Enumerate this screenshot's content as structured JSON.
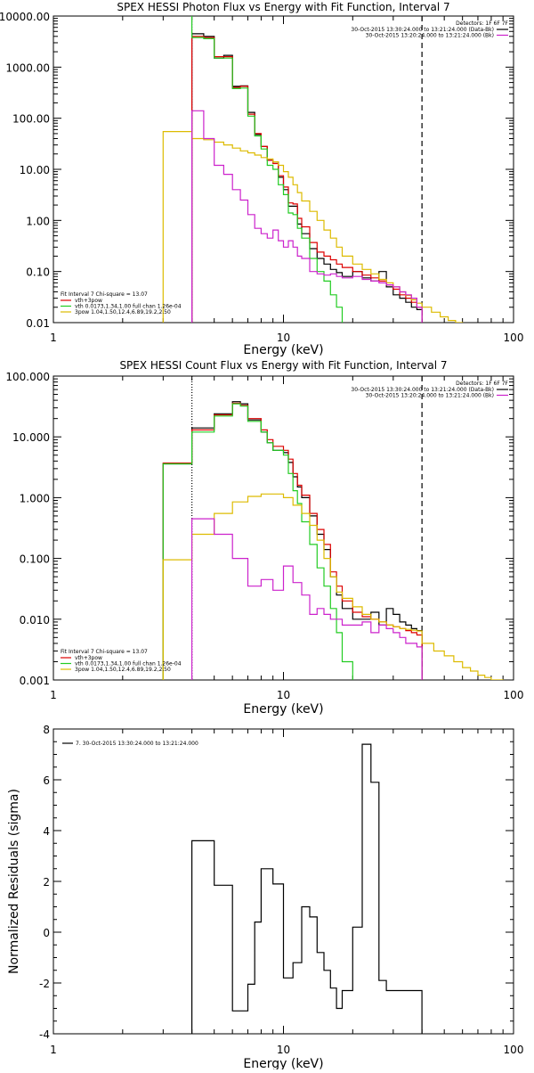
{
  "chart_data": [
    {
      "type": "line",
      "title": "SPEX HESSI Photon Flux vs Energy with Fit Function, Interval 7",
      "xlabel": "Energy (keV)",
      "ylabel": "",
      "x_scale": "log",
      "y_scale": "log",
      "xlim": [
        1,
        100
      ],
      "ylim": [
        0.01,
        10000
      ],
      "x_ticks": [
        1,
        10,
        100
      ],
      "x_tick_labels": [
        "1",
        "10",
        "100"
      ],
      "y_ticks": [
        0.01,
        0.1,
        1,
        10,
        100,
        1000,
        10000
      ],
      "y_tick_labels": [
        "0.01",
        "0.10",
        "1.00",
        "10.00",
        "100.00",
        "1000.00",
        "10000.00"
      ],
      "grid": false,
      "legend_top": {
        "title": "Detectors: 1F 6F 7F",
        "entries": [
          {
            "label": "30-Oct-2015 13:30:24.000 to 13:21:24.000 (Data-Bk)",
            "color": "#000000"
          },
          {
            "label": "30-Oct-2015 13:20:24.000 to 13:21:24.000 (Bk)",
            "color": "#cc22cc"
          }
        ]
      },
      "legend_bottom": {
        "title": "Fit Interval 7   Chi-square = 13.07",
        "entries": [
          {
            "label": "vth+3pow",
            "color": "#dd0000"
          },
          {
            "label": "vth 0.0173,1.34,1.00  full chan 1.26e-04",
            "color": "#22cc22"
          },
          {
            "label": "3pow 1.04,1.50,12.4,6.89,19.2,2.50",
            "color": "#ddbb00"
          }
        ]
      },
      "vlines": [
        {
          "x": 4.0,
          "style": "dotted",
          "color": "#cc22cc"
        },
        {
          "x": 40.0,
          "style": "dashed",
          "color": "#000000"
        }
      ],
      "series": [
        {
          "name": "Data-Bk",
          "color": "#000000",
          "edges": [
            4,
            4.5,
            5,
            5.5,
            6,
            6.5,
            7,
            7.5,
            8,
            8.5,
            9,
            9.5,
            10,
            10.5,
            11,
            11.5,
            12,
            13,
            14,
            15,
            16,
            17,
            18,
            20,
            22,
            24,
            26,
            28,
            30,
            32,
            34,
            36,
            38,
            40
          ],
          "values": [
            4500,
            4000,
            1500,
            1700,
            420,
            430,
            130,
            48,
            28,
            15,
            14,
            7,
            4,
            1.9,
            1.9,
            0.85,
            0.55,
            0.28,
            0.18,
            0.14,
            0.11,
            0.095,
            0.08,
            0.1,
            0.075,
            0.065,
            0.1,
            0.05,
            0.035,
            0.03,
            0.025,
            0.02,
            0.018
          ]
        },
        {
          "name": "vth+3pow",
          "color": "#dd0000",
          "edges": [
            4,
            4.5,
            5,
            5.5,
            6,
            6.5,
            7,
            7.5,
            8,
            8.5,
            9,
            9.5,
            10,
            10.5,
            11,
            11.5,
            12,
            13,
            14,
            15,
            16,
            17,
            18,
            20,
            22,
            24,
            26,
            28,
            30,
            32,
            34,
            36,
            38,
            40
          ],
          "values": [
            4000,
            3800,
            1600,
            1600,
            400,
            420,
            120,
            50,
            28,
            15,
            13,
            7.5,
            4.5,
            2.2,
            2.1,
            1.1,
            0.75,
            0.37,
            0.24,
            0.2,
            0.17,
            0.14,
            0.12,
            0.1,
            0.085,
            0.075,
            0.065,
            0.055,
            0.045,
            0.035,
            0.03,
            0.025,
            0.02
          ]
        },
        {
          "name": "vth",
          "color": "#22cc22",
          "edges": [
            3.0,
            4.0,
            4.5,
            5,
            5.5,
            6,
            6.5,
            7,
            7.5,
            8,
            8.5,
            9,
            9.5,
            10,
            10.5,
            11,
            11.5,
            12,
            13,
            14,
            15,
            16,
            17,
            18
          ],
          "values": [
            null,
            3800,
            3600,
            1500,
            1500,
            380,
            390,
            110,
            45,
            25,
            12,
            10,
            5,
            3.2,
            1.4,
            1.3,
            0.7,
            0.45,
            0.18,
            0.1,
            0.065,
            0.035,
            0.02
          ]
        },
        {
          "name": "3pow",
          "color": "#ddbb00",
          "edges": [
            3.0,
            4.0,
            4.5,
            5,
            5.5,
            6,
            6.5,
            7,
            7.5,
            8,
            8.5,
            9,
            9.5,
            10,
            10.5,
            11,
            11.5,
            12,
            13,
            14,
            15,
            16,
            17,
            18,
            20,
            22,
            24,
            26,
            28,
            30,
            32,
            34,
            36,
            38,
            40,
            44,
            48,
            52,
            56,
            60
          ],
          "values": [
            55,
            40,
            38,
            34,
            30,
            26,
            23,
            21,
            19,
            17,
            16,
            14,
            12,
            9,
            7,
            5,
            3.5,
            2.4,
            1.5,
            1.0,
            0.65,
            0.45,
            0.3,
            0.2,
            0.14,
            0.11,
            0.09,
            0.07,
            0.06,
            0.05,
            0.04,
            0.034,
            0.028,
            0.024,
            0.02,
            0.016,
            0.013,
            0.011,
            0.01
          ]
        },
        {
          "name": "Bk",
          "color": "#cc22cc",
          "edges": [
            4,
            4.5,
            5,
            5.5,
            6,
            6.5,
            7,
            7.5,
            8,
            8.5,
            9,
            9.5,
            10,
            10.5,
            11,
            11.5,
            12,
            13,
            14,
            15,
            16,
            17,
            18,
            20,
            22,
            24,
            26,
            28,
            30,
            32,
            34,
            36,
            38,
            40
          ],
          "values": [
            140,
            40,
            12,
            8,
            4,
            2.5,
            1.3,
            0.7,
            0.55,
            0.45,
            0.65,
            0.4,
            0.3,
            0.4,
            0.3,
            0.2,
            0.18,
            0.1,
            0.09,
            0.085,
            0.09,
            0.08,
            0.075,
            0.08,
            0.07,
            0.065,
            0.06,
            0.055,
            0.05,
            0.04,
            0.035,
            0.03,
            0.02
          ]
        }
      ]
    },
    {
      "type": "line",
      "title": "SPEX HESSI Count Flux vs Energy with Fit Function, Interval 7",
      "xlabel": "Energy (keV)",
      "ylabel": "",
      "x_scale": "log",
      "y_scale": "log",
      "xlim": [
        1,
        100
      ],
      "ylim": [
        0.001,
        100
      ],
      "x_ticks": [
        1,
        10,
        100
      ],
      "x_tick_labels": [
        "1",
        "10",
        "100"
      ],
      "y_ticks": [
        0.001,
        0.01,
        0.1,
        1,
        10,
        100
      ],
      "y_tick_labels": [
        "0.001",
        "0.010",
        "0.100",
        "1.000",
        "10.000",
        "100.000"
      ],
      "grid": false,
      "legend_top": {
        "title": "Detectors: 1F 6F 7F",
        "entries": [
          {
            "label": "30-Oct-2015 13:30:24.000 to 13:21:24.000 (Data-Bk)",
            "color": "#000000"
          },
          {
            "label": "30-Oct-2015 13:20:24.000 to 13:21:24.000 (Bk)",
            "color": "#cc22cc"
          }
        ]
      },
      "legend_bottom": {
        "title": "Fit Interval 7   Chi-square = 13.07",
        "entries": [
          {
            "label": "vth+3pow",
            "color": "#dd0000"
          },
          {
            "label": "vth 0.0173,1.34,1.00  full chan 1.26e-04",
            "color": "#22cc22"
          },
          {
            "label": "3pow 1.04,1.50,12.4,6.89,19.2,2.50",
            "color": "#ddbb00"
          }
        ]
      },
      "vlines": [
        {
          "x": 4.0,
          "style": "dotted",
          "color": "#000000"
        },
        {
          "x": 40.0,
          "style": "dashed",
          "color": "#000000"
        }
      ],
      "series": [
        {
          "name": "Data-Bk",
          "color": "#000000",
          "edges": [
            3.0,
            4.0,
            5.0,
            6.0,
            6.5,
            7.0,
            8.0,
            8.5,
            9.0,
            10.0,
            10.5,
            11.0,
            11.5,
            12.0,
            13.0,
            14.0,
            15.0,
            16.0,
            17.0,
            18.0,
            20.0,
            22.0,
            24.0,
            26.0,
            28.0,
            30.0,
            32.0,
            34.0,
            36.0,
            38.0,
            40.0
          ],
          "values": [
            3.6,
            14,
            24,
            38,
            35,
            19,
            12,
            8,
            6,
            5.5,
            3.8,
            2.2,
            1.5,
            1.0,
            0.5,
            0.25,
            0.14,
            0.05,
            0.025,
            0.015,
            0.01,
            0.01,
            0.013,
            0.008,
            0.015,
            0.012,
            0.009,
            0.008,
            0.007,
            0.0065
          ]
        },
        {
          "name": "vth+3pow",
          "color": "#dd0000",
          "edges": [
            3.0,
            4.0,
            5.0,
            6.0,
            6.5,
            7.0,
            8.0,
            8.5,
            9.0,
            10.0,
            10.5,
            11.0,
            11.5,
            12.0,
            13.0,
            14.0,
            15.0,
            16.0,
            17.0,
            18.0,
            20.0,
            22.0,
            24.0,
            26.0,
            28.0,
            30.0,
            32.0,
            34.0,
            36.0,
            38.0,
            40.0
          ],
          "values": [
            3.7,
            13,
            23,
            36,
            33,
            20,
            13,
            9,
            7,
            6,
            4.3,
            2.5,
            1.6,
            1.1,
            0.55,
            0.3,
            0.17,
            0.06,
            0.035,
            0.02,
            0.013,
            0.011,
            0.01,
            0.009,
            0.008,
            0.0075,
            0.007,
            0.0065,
            0.006,
            0.0055
          ]
        },
        {
          "name": "vth",
          "color": "#22cc22",
          "edges": [
            3.0,
            4.0,
            5.0,
            6.0,
            6.5,
            7.0,
            8.0,
            8.5,
            9.0,
            10.0,
            10.5,
            11.0,
            11.5,
            12.0,
            13.0,
            14.0,
            15.0,
            16.0,
            17.0,
            18.0,
            20.0
          ],
          "values": [
            3.6,
            12,
            22,
            35,
            32,
            18,
            12,
            8,
            6,
            5,
            2.5,
            1.3,
            0.8,
            0.4,
            0.17,
            0.07,
            0.035,
            0.015,
            0.006,
            0.002
          ]
        },
        {
          "name": "3pow",
          "color": "#ddbb00",
          "edges": [
            3.0,
            4.0,
            5.0,
            6.0,
            7.0,
            8.0,
            9.0,
            10.0,
            11.0,
            12.0,
            13.0,
            14.0,
            15.0,
            16.0,
            17.0,
            18.0,
            20.0,
            22.0,
            24.0,
            26.0,
            28.0,
            30.0,
            32.0,
            34.0,
            36.0,
            38.0,
            40.0,
            45.0,
            50.0,
            55.0,
            60.0,
            65.0,
            70.0,
            75.0,
            80.0,
            85.0,
            90.0
          ],
          "values": [
            0.095,
            0.25,
            0.55,
            0.85,
            1.05,
            1.15,
            1.15,
            1.0,
            0.75,
            0.55,
            0.35,
            0.2,
            0.1,
            0.05,
            0.028,
            0.022,
            0.016,
            0.012,
            0.01,
            0.009,
            0.008,
            0.0075,
            0.007,
            0.0068,
            0.0066,
            0.0064,
            0.004,
            0.003,
            0.0025,
            0.002,
            0.0016,
            0.0014,
            0.0012,
            0.0011,
            0.001,
            0.001
          ]
        },
        {
          "name": "Bk",
          "color": "#cc22cc",
          "edges": [
            4.0,
            5.0,
            6.0,
            7.0,
            8.0,
            9.0,
            10.0,
            11.0,
            12.0,
            13.0,
            14.0,
            15.0,
            16.0,
            17.0,
            18.0,
            20.0,
            22.0,
            24.0,
            26.0,
            28.0,
            30.0,
            32.0,
            34.0,
            36.0,
            38.0,
            40.0
          ],
          "values": [
            0.45,
            0.25,
            0.1,
            0.035,
            0.045,
            0.03,
            0.075,
            0.04,
            0.025,
            0.012,
            0.015,
            0.012,
            0.01,
            0.01,
            0.008,
            0.008,
            0.009,
            0.006,
            0.008,
            0.007,
            0.006,
            0.005,
            0.004,
            0.004,
            0.0035
          ]
        }
      ]
    },
    {
      "type": "line",
      "title": "",
      "xlabel": "Energy (keV)",
      "ylabel": "Normalized Residuals (sigma)",
      "x_scale": "log",
      "y_scale": "linear",
      "xlim": [
        1,
        100
      ],
      "ylim": [
        -4,
        8
      ],
      "x_ticks": [
        1,
        10,
        100
      ],
      "x_tick_labels": [
        "1",
        "10",
        "100"
      ],
      "y_ticks": [
        -4,
        -2,
        0,
        2,
        4,
        6,
        8
      ],
      "y_tick_labels": [
        "-4",
        "-2",
        "0",
        "2",
        "4",
        "6",
        "8"
      ],
      "grid": false,
      "legend_top": {
        "title": "",
        "entries": [
          {
            "label": "7. 30-Oct-2015 13:30:24.000 to 13:21:24.000",
            "color": "#000000"
          }
        ]
      },
      "series": [
        {
          "name": "7. 30-Oct-2015 13:30:24.000 to 13:21:24.000",
          "color": "#000000",
          "edges": [
            4.0,
            5.0,
            6.0,
            7.0,
            7.5,
            8.0,
            9.0,
            10.0,
            11.0,
            12.0,
            13.0,
            14.0,
            15.0,
            16.0,
            17.0,
            18.0,
            20.0,
            22.0,
            24.0,
            26.0,
            28.0,
            30.0,
            32.0,
            34.0,
            36.0,
            38.0,
            40.0
          ],
          "values": [
            3.6,
            1.85,
            -3.1,
            -2.05,
            0.4,
            2.5,
            1.9,
            -1.8,
            -1.2,
            1.0,
            0.6,
            -0.8,
            -1.5,
            -2.2,
            -3.0,
            -2.3,
            0.2,
            7.4,
            5.9,
            -1.9,
            -2.3,
            -2.3,
            -2.3,
            -2.3,
            -2.3,
            -2.3
          ]
        }
      ]
    }
  ]
}
